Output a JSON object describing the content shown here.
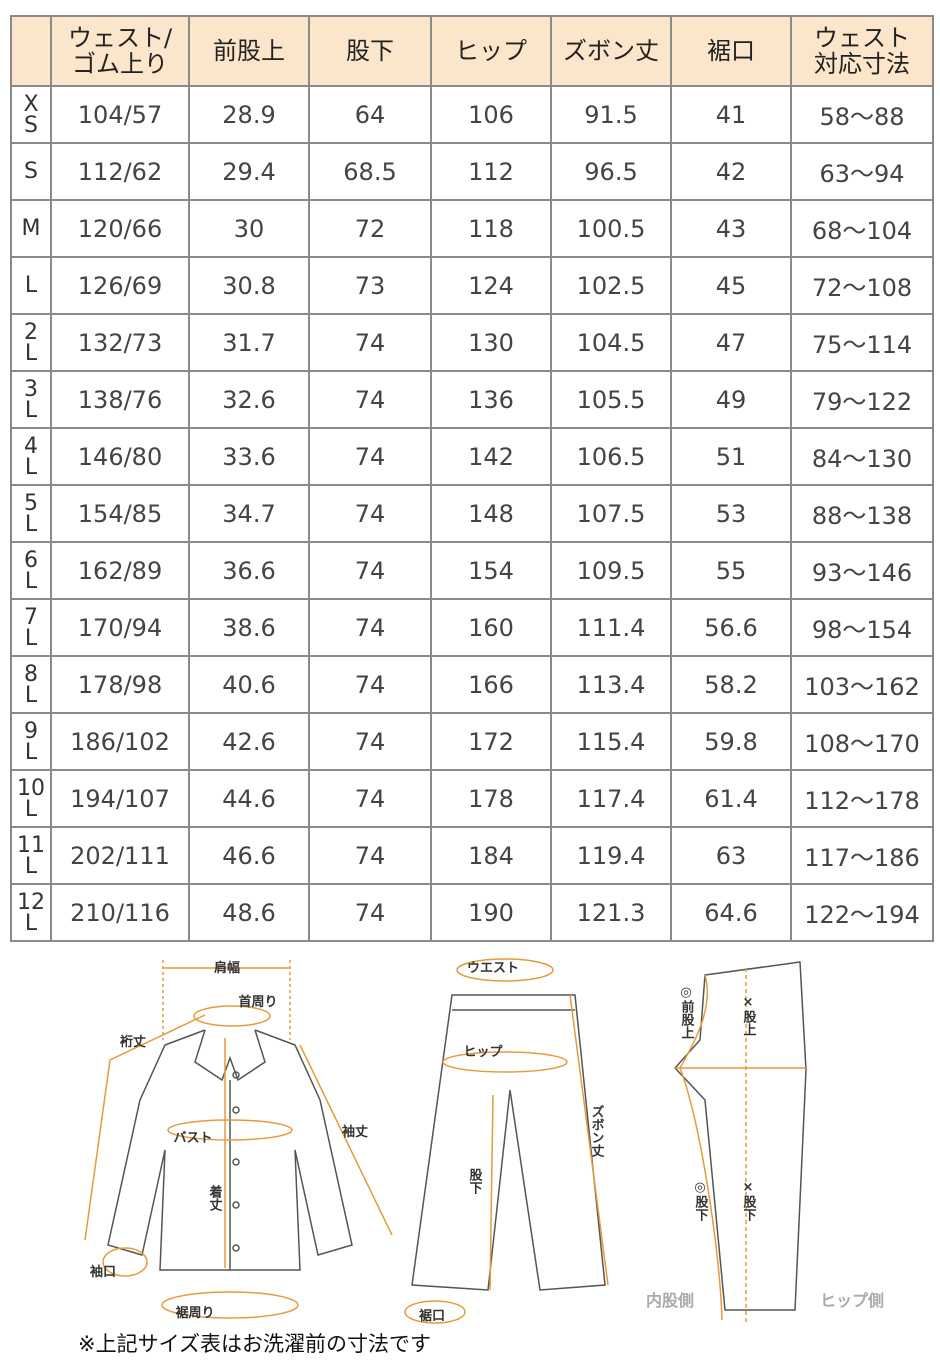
{
  "table": {
    "header": [
      [
        "ウェスト/",
        "ゴム上り"
      ],
      [
        "前股上"
      ],
      [
        "股下"
      ],
      [
        "ヒップ"
      ],
      [
        "ズボン丈"
      ],
      [
        "裾口"
      ],
      [
        "ウェスト",
        "対応寸法"
      ]
    ],
    "rows": [
      {
        "size": [
          "X",
          "S"
        ],
        "cells": [
          "104/57",
          "28.9",
          "64",
          "106",
          "91.5",
          "41",
          "58～88"
        ]
      },
      {
        "size": [
          "S"
        ],
        "cells": [
          "112/62",
          "29.4",
          "68.5",
          "112",
          "96.5",
          "42",
          "63～94"
        ]
      },
      {
        "size": [
          "M"
        ],
        "cells": [
          "120/66",
          "30",
          "72",
          "118",
          "100.5",
          "43",
          "68～104"
        ]
      },
      {
        "size": [
          "L"
        ],
        "cells": [
          "126/69",
          "30.8",
          "73",
          "124",
          "102.5",
          "45",
          "72～108"
        ]
      },
      {
        "size": [
          "2",
          "L"
        ],
        "cells": [
          "132/73",
          "31.7",
          "74",
          "130",
          "104.5",
          "47",
          "75～114"
        ]
      },
      {
        "size": [
          "3",
          "L"
        ],
        "cells": [
          "138/76",
          "32.6",
          "74",
          "136",
          "105.5",
          "49",
          "79～122"
        ]
      },
      {
        "size": [
          "4",
          "L"
        ],
        "cells": [
          "146/80",
          "33.6",
          "74",
          "142",
          "106.5",
          "51",
          "84～130"
        ]
      },
      {
        "size": [
          "5",
          "L"
        ],
        "cells": [
          "154/85",
          "34.7",
          "74",
          "148",
          "107.5",
          "53",
          "88～138"
        ]
      },
      {
        "size": [
          "6",
          "L"
        ],
        "cells": [
          "162/89",
          "36.6",
          "74",
          "154",
          "109.5",
          "55",
          "93～146"
        ]
      },
      {
        "size": [
          "7",
          "L"
        ],
        "cells": [
          "170/94",
          "38.6",
          "74",
          "160",
          "111.4",
          "56.6",
          "98～154"
        ]
      },
      {
        "size": [
          "8",
          "L"
        ],
        "cells": [
          "178/98",
          "40.6",
          "74",
          "166",
          "113.4",
          "58.2",
          "103～162"
        ]
      },
      {
        "size": [
          "9",
          "L"
        ],
        "cells": [
          "186/102",
          "42.6",
          "74",
          "172",
          "115.4",
          "59.8",
          "108～170"
        ]
      },
      {
        "size": [
          "10",
          "L"
        ],
        "cells": [
          "194/107",
          "44.6",
          "74",
          "178",
          "117.4",
          "61.4",
          "112～178"
        ]
      },
      {
        "size": [
          "11",
          "L"
        ],
        "cells": [
          "202/111",
          "46.6",
          "74",
          "184",
          "119.4",
          "63",
          "117～186"
        ]
      },
      {
        "size": [
          "12",
          "L"
        ],
        "cells": [
          "210/116",
          "48.6",
          "74",
          "190",
          "121.3",
          "64.6",
          "122～194"
        ]
      }
    ]
  },
  "diagram": {
    "labels": [
      "肩幅",
      "首周り",
      "裄丈",
      "袖丈",
      "バスト",
      "着丈",
      "袖口",
      "裾周り",
      "ウエスト",
      "ヒップ",
      "ズボン丈",
      "股下",
      "裾口",
      "◎前股上",
      "×股上",
      "◎股下",
      "×股下",
      "内股側",
      "ヒップ側"
    ]
  },
  "note": "※上記サイズ表はお洗濯前の寸法です"
}
